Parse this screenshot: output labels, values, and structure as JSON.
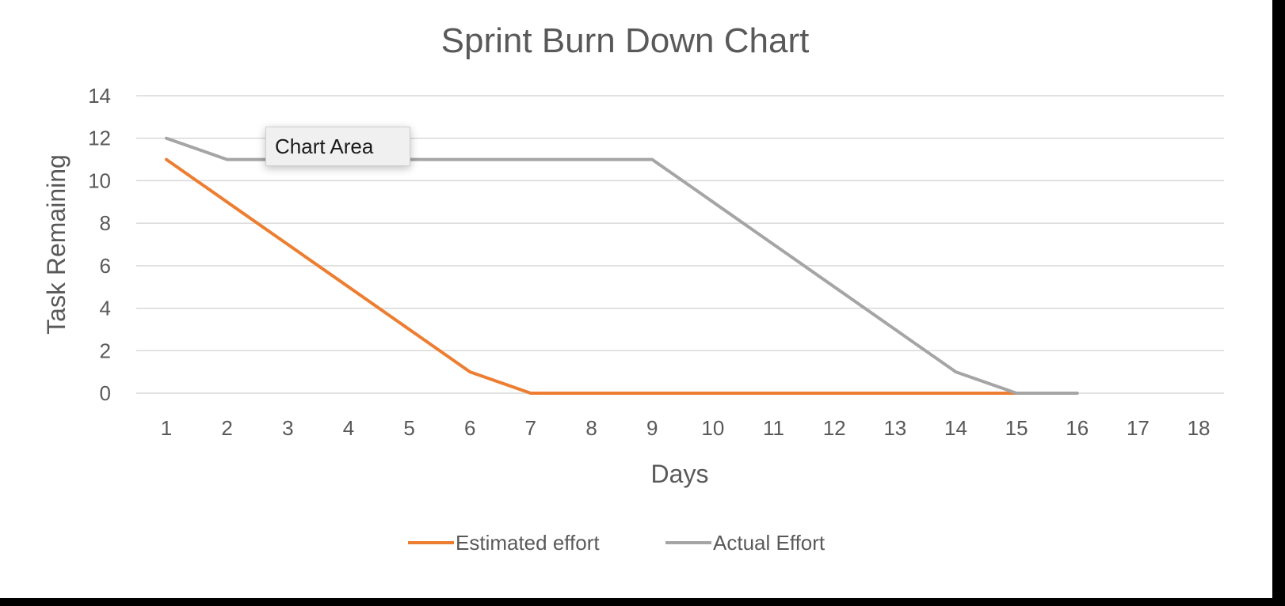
{
  "tooltip": {
    "label": "Chart Area"
  },
  "chart_data": {
    "type": "line",
    "title": "Sprint Burn Down Chart",
    "xlabel": "Days",
    "ylabel": "Task Remaining",
    "categories": [
      "1",
      "2",
      "3",
      "4",
      "5",
      "6",
      "7",
      "8",
      "9",
      "10",
      "11",
      "12",
      "13",
      "14",
      "15",
      "16",
      "17",
      "18"
    ],
    "ylim": [
      0,
      14
    ],
    "yticks": [
      0,
      2,
      4,
      6,
      8,
      10,
      12,
      14
    ],
    "grid": true,
    "legend": "bottom",
    "series": [
      {
        "name": "Estimated effort",
        "color": "#ed7d31",
        "values": [
          11,
          9,
          7,
          5,
          3,
          1,
          0,
          0,
          0,
          0,
          0,
          0,
          0,
          0,
          0,
          null,
          null,
          null
        ]
      },
      {
        "name": "Actual Effort",
        "color": "#a5a5a5",
        "values": [
          12,
          11,
          11,
          11,
          11,
          11,
          11,
          11,
          11,
          9,
          7,
          5,
          3,
          1,
          0,
          0,
          null,
          null
        ]
      }
    ]
  }
}
